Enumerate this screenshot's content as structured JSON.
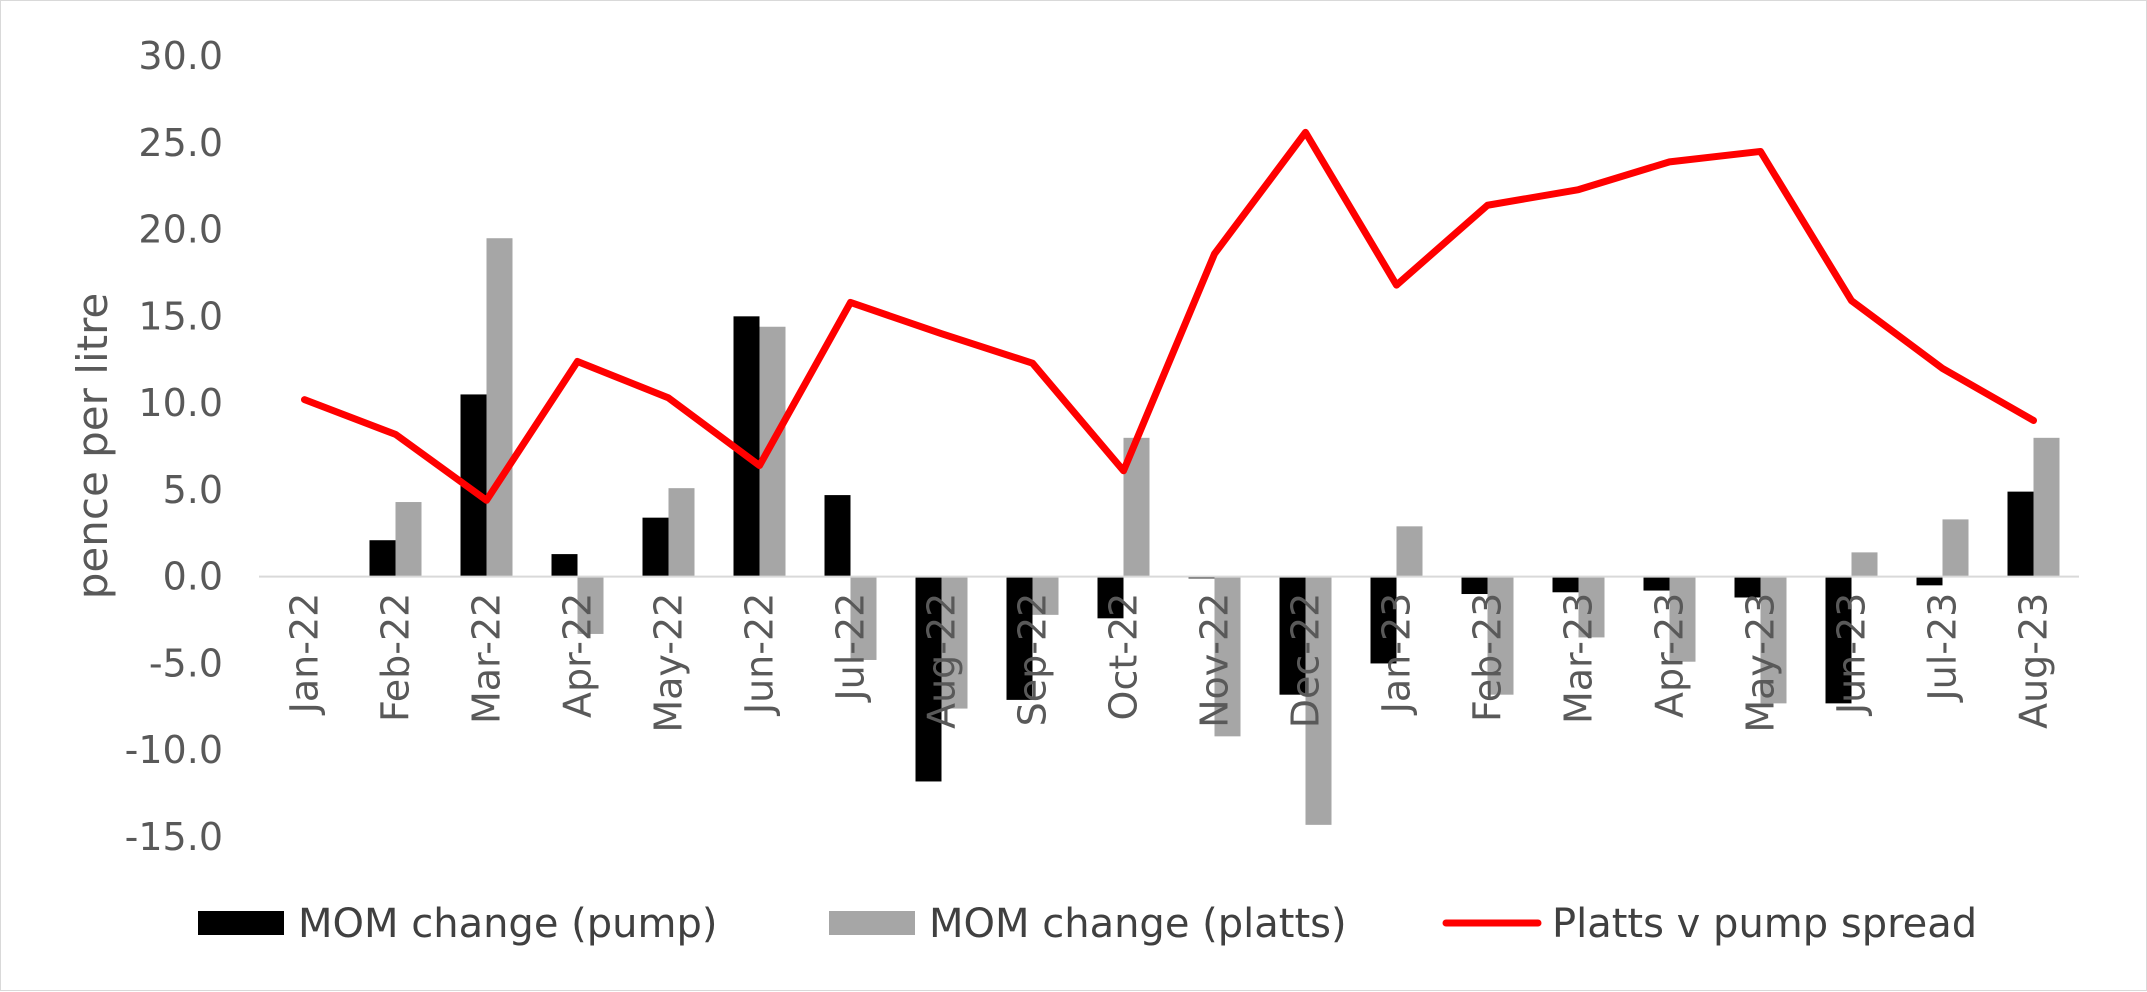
{
  "chart_data": {
    "type": "bar",
    "title": "",
    "xlabel": "",
    "ylabel": "pence per litre",
    "ylim": [
      -15,
      30
    ],
    "yticks": [
      30,
      25,
      20,
      15,
      10,
      5,
      0,
      -5,
      -10,
      -15
    ],
    "ytick_labels": [
      "30.0",
      "25.0",
      "20.0",
      "15.0",
      "10.0",
      "5.0",
      "0.0",
      "-5.0",
      "-10.0",
      "-15.0"
    ],
    "grid": false,
    "legend_position": "bottom",
    "categories": [
      "Jan-22",
      "Feb-22",
      "Mar-22",
      "Apr-22",
      "May-22",
      "Jun-22",
      "Jul-22",
      "Aug-22",
      "Sep-22",
      "Oct-22",
      "Nov-22",
      "Dec-22",
      "Jan-23",
      "Feb-23",
      "Mar-23",
      "Apr-23",
      "May-23",
      "Jun-23",
      "Jul-23",
      "Aug-23"
    ],
    "series": [
      {
        "name": "MOM change (pump)",
        "kind": "bar",
        "color": "#000000",
        "values": [
          0,
          2.1,
          10.5,
          1.3,
          3.4,
          15.0,
          4.7,
          -11.8,
          -7.1,
          -2.4,
          -0.1,
          -6.8,
          -5.0,
          -1.0,
          -0.9,
          -0.8,
          -1.2,
          -7.3,
          -0.5,
          4.9
        ]
      },
      {
        "name": "MOM change (platts)",
        "kind": "bar",
        "color": "#a6a6a6",
        "values": [
          0,
          4.3,
          19.5,
          -3.3,
          5.1,
          14.4,
          -4.8,
          -7.6,
          -2.2,
          8.0,
          -9.2,
          -14.3,
          2.9,
          -6.8,
          -3.5,
          -4.9,
          -7.3,
          1.4,
          3.3,
          8.0
        ]
      },
      {
        "name": "Platts v pump spread",
        "kind": "line",
        "color": "#ff0000",
        "values": [
          10.2,
          8.2,
          4.4,
          12.4,
          10.3,
          6.4,
          15.8,
          14.0,
          12.3,
          6.1,
          18.6,
          25.6,
          16.8,
          21.4,
          22.3,
          23.9,
          24.5,
          15.9,
          12.0,
          9.0
        ]
      }
    ]
  }
}
